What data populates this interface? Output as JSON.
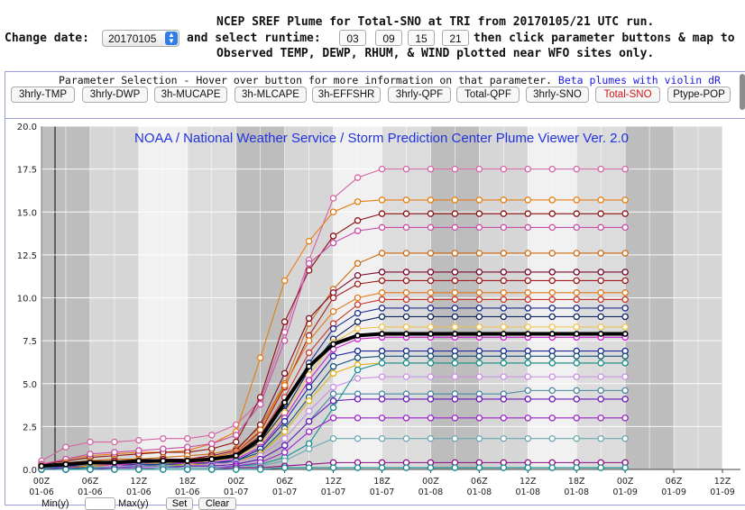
{
  "header": {
    "line1": "NCEP SREF Plume for Total-SNO at TRI from 20170105/21 UTC run.",
    "change_date_label": "Change date:",
    "date_value": "20170105",
    "select_runtime_label": "and select runtime:",
    "runtimes": [
      "03",
      "09",
      "15",
      "21"
    ],
    "after_runtime": "then click parameter buttons & map to",
    "line3": "Observed TEMP, DEWP, RHUM, & WIND plotted near WFO sites only."
  },
  "params": {
    "title": "Parameter Selection - Hover over button for more information on that parameter.",
    "beta_link": "Beta plumes with violin dR",
    "buttons": [
      "3hrly-TMP",
      "3hrly-DWP",
      "3h-MUCAPE",
      "3h-MLCAPE",
      "3h-EFFSHR",
      "3hrly-QPF",
      "Total-QPF",
      "3hrly-SNO",
      "Total-SNO",
      "Ptype-POP"
    ],
    "active": "Total-SNO"
  },
  "footer": {
    "min_label": "Min(y)",
    "max_label": "Max(y)",
    "set_label": "Set",
    "clear_label": "Clear"
  },
  "chart_data": {
    "type": "line",
    "title": "NOAA / National Weather Service / Storm Prediction Center Plume Viewer Ver. 2.0",
    "ylim": [
      0,
      20
    ],
    "y_ticks": [
      "0.0",
      "2.5",
      "5.0",
      "7.5",
      "10.0",
      "12.5",
      "15.0",
      "17.5",
      "20.0"
    ],
    "x_hours": [
      0,
      3,
      6,
      9,
      12,
      15,
      18,
      21,
      24,
      27,
      30,
      33,
      36,
      39,
      42,
      45,
      48,
      51,
      54,
      57,
      60,
      63,
      66,
      69,
      72
    ],
    "x_tick_labels": [
      {
        "hour": 0,
        "time": "00Z",
        "date": "01-06"
      },
      {
        "hour": 6,
        "time": "06Z",
        "date": "01-06"
      },
      {
        "hour": 12,
        "time": "12Z",
        "date": "01-06"
      },
      {
        "hour": 18,
        "time": "18Z",
        "date": "01-06"
      },
      {
        "hour": 24,
        "time": "00Z",
        "date": "01-07"
      },
      {
        "hour": 30,
        "time": "06Z",
        "date": "01-07"
      },
      {
        "hour": 36,
        "time": "12Z",
        "date": "01-07"
      },
      {
        "hour": 42,
        "time": "18Z",
        "date": "01-07"
      },
      {
        "hour": 48,
        "time": "00Z",
        "date": "01-08"
      },
      {
        "hour": 54,
        "time": "06Z",
        "date": "01-08"
      },
      {
        "hour": 60,
        "time": "12Z",
        "date": "01-08"
      },
      {
        "hour": 66,
        "time": "18Z",
        "date": "01-08"
      },
      {
        "hour": 72,
        "time": "00Z",
        "date": "01-09"
      },
      {
        "hour": 78,
        "time": "06Z",
        "date": "01-09"
      },
      {
        "hour": 84,
        "time": "12Z",
        "date": "01-09"
      }
    ],
    "grid": true,
    "series": [
      {
        "color": "#d462a5",
        "values": [
          0.5,
          1.3,
          1.6,
          1.6,
          1.7,
          1.8,
          1.8,
          2.0,
          2.6,
          4.0,
          8.0,
          12.2,
          15.8,
          17.0,
          17.5,
          17.5,
          17.5,
          17.5,
          17.5,
          17.5,
          17.5,
          17.5,
          17.5,
          17.5,
          17.5
        ]
      },
      {
        "color": "#e87d12",
        "values": [
          0.3,
          0.6,
          0.8,
          0.9,
          1.0,
          1.0,
          1.1,
          1.5,
          2.2,
          6.5,
          11.0,
          13.3,
          15.0,
          15.6,
          15.7,
          15.7,
          15.7,
          15.7,
          15.7,
          15.7,
          15.7,
          15.7,
          15.7,
          15.7,
          15.7
        ]
      },
      {
        "color": "#8a1010",
        "values": [
          0.3,
          0.5,
          0.7,
          0.8,
          0.9,
          1.0,
          1.0,
          1.2,
          1.6,
          4.2,
          8.6,
          11.6,
          13.6,
          14.5,
          14.9,
          14.9,
          14.9,
          14.9,
          14.9,
          14.9,
          14.9,
          14.9,
          14.9,
          14.9,
          14.9
        ]
      },
      {
        "color": "#c74fa8",
        "values": [
          0.3,
          0.6,
          0.9,
          1.0,
          1.1,
          1.2,
          1.3,
          1.5,
          2.0,
          3.8,
          7.5,
          12.0,
          13.2,
          13.9,
          14.1,
          14.1,
          14.1,
          14.1,
          14.1,
          14.1,
          14.1,
          14.1,
          14.1,
          14.1,
          14.1
        ]
      },
      {
        "color": "#cf6a10",
        "values": [
          0.2,
          0.4,
          0.5,
          0.6,
          0.6,
          0.7,
          0.8,
          0.9,
          1.2,
          2.5,
          5.0,
          8.5,
          10.5,
          12.0,
          12.6,
          12.6,
          12.6,
          12.6,
          12.6,
          12.6,
          12.6,
          12.6,
          12.6,
          12.6,
          12.6
        ]
      },
      {
        "color": "#7a0c2a",
        "values": [
          0.2,
          0.3,
          0.4,
          0.5,
          0.5,
          0.6,
          0.6,
          0.8,
          1.1,
          2.6,
          5.6,
          8.8,
          10.3,
          11.3,
          11.5,
          11.5,
          11.5,
          11.5,
          11.5,
          11.5,
          11.5,
          11.5,
          11.5,
          11.5,
          11.5
        ]
      },
      {
        "color": "#a01c1c",
        "values": [
          0.2,
          0.3,
          0.4,
          0.4,
          0.5,
          0.5,
          0.6,
          0.7,
          1.0,
          2.2,
          4.8,
          7.8,
          10.0,
          10.8,
          11.0,
          11.0,
          11.0,
          11.0,
          11.0,
          11.0,
          11.0,
          11.0,
          11.0,
          11.0,
          11.0
        ]
      },
      {
        "color": "#e07a18",
        "values": [
          0.2,
          0.3,
          0.4,
          0.4,
          0.5,
          0.5,
          0.6,
          0.7,
          1.0,
          2.3,
          4.9,
          7.5,
          9.2,
          10.0,
          10.3,
          10.3,
          10.3,
          10.3,
          10.3,
          10.3,
          10.3,
          10.3,
          10.3,
          10.3,
          10.3
        ]
      },
      {
        "color": "#c8362b",
        "values": [
          0.2,
          0.3,
          0.3,
          0.4,
          0.4,
          0.5,
          0.5,
          0.6,
          0.9,
          2.0,
          4.2,
          6.8,
          8.5,
          9.6,
          9.9,
          9.9,
          9.9,
          9.9,
          9.9,
          9.9,
          9.9,
          9.9,
          9.9,
          9.9,
          9.9
        ]
      },
      {
        "color": "#1f2f8f",
        "values": [
          0.1,
          0.2,
          0.3,
          0.3,
          0.4,
          0.4,
          0.5,
          0.6,
          0.8,
          1.8,
          3.8,
          6.2,
          8.2,
          9.1,
          9.4,
          9.4,
          9.4,
          9.4,
          9.4,
          9.4,
          9.4,
          9.4,
          9.4,
          9.4,
          9.4
        ]
      },
      {
        "color": "#102860",
        "values": [
          0.1,
          0.2,
          0.3,
          0.3,
          0.3,
          0.4,
          0.4,
          0.5,
          0.7,
          1.6,
          3.4,
          5.8,
          7.6,
          8.6,
          8.9,
          8.9,
          8.9,
          8.9,
          8.9,
          8.9,
          8.9,
          8.9,
          8.9,
          8.9,
          8.9
        ]
      },
      {
        "color": "#f2c14a",
        "values": [
          0.1,
          0.2,
          0.3,
          0.3,
          0.3,
          0.4,
          0.4,
          0.5,
          0.7,
          1.5,
          3.3,
          5.5,
          7.4,
          8.2,
          8.3,
          8.3,
          8.3,
          8.3,
          8.3,
          8.3,
          8.3,
          8.3,
          8.3,
          8.3,
          8.3
        ]
      },
      {
        "color": "#000000",
        "values": [
          0.2,
          0.3,
          0.4,
          0.4,
          0.5,
          0.5,
          0.5,
          0.6,
          0.8,
          1.8,
          3.9,
          6.0,
          7.3,
          7.8,
          7.9,
          7.9,
          7.9,
          7.9,
          7.9,
          7.9,
          7.9,
          7.9,
          7.9,
          7.9,
          7.9
        ],
        "mean": true
      },
      {
        "color": "#cc22cc",
        "values": [
          0.1,
          0.2,
          0.2,
          0.3,
          0.3,
          0.3,
          0.4,
          0.4,
          0.6,
          1.3,
          3.0,
          5.2,
          7.0,
          7.6,
          7.7,
          7.7,
          7.7,
          7.7,
          7.7,
          7.7,
          7.7,
          7.7,
          7.7,
          7.7,
          7.7
        ]
      },
      {
        "color": "#1b2a99",
        "values": [
          0.1,
          0.2,
          0.2,
          0.2,
          0.3,
          0.3,
          0.3,
          0.4,
          0.5,
          1.2,
          2.8,
          4.8,
          6.6,
          6.9,
          6.9,
          6.9,
          6.9,
          6.9,
          6.9,
          6.9,
          6.9,
          6.9,
          6.9,
          6.9,
          6.9
        ]
      },
      {
        "color": "#14507a",
        "values": [
          0.1,
          0.1,
          0.2,
          0.2,
          0.2,
          0.3,
          0.3,
          0.3,
          0.5,
          1.0,
          2.4,
          4.2,
          6.0,
          6.5,
          6.6,
          6.6,
          6.6,
          6.6,
          6.6,
          6.6,
          6.6,
          6.6,
          6.6,
          6.6,
          6.6
        ]
      },
      {
        "color": "#e0b016",
        "values": [
          0.1,
          0.1,
          0.2,
          0.2,
          0.2,
          0.2,
          0.3,
          0.3,
          0.4,
          0.9,
          2.2,
          4.0,
          5.6,
          6.1,
          6.2,
          6.2,
          6.2,
          6.2,
          6.2,
          6.2,
          6.2,
          6.2,
          6.2,
          6.2,
          6.2
        ]
      },
      {
        "color": "#c98de3",
        "values": [
          0.1,
          0.1,
          0.1,
          0.2,
          0.2,
          0.2,
          0.2,
          0.3,
          0.4,
          0.8,
          1.8,
          3.4,
          4.8,
          5.3,
          5.4,
          5.4,
          5.4,
          5.4,
          5.4,
          5.4,
          5.4,
          5.4,
          5.4,
          5.4,
          5.4
        ]
      },
      {
        "color": "#4a88a0",
        "values": [
          0.1,
          0.1,
          0.1,
          0.1,
          0.2,
          0.2,
          0.2,
          0.2,
          0.3,
          0.6,
          1.4,
          2.8,
          4.4,
          4.4,
          4.4,
          4.4,
          4.4,
          4.4,
          4.4,
          4.4,
          4.6,
          4.6,
          4.6,
          4.6,
          4.6
        ]
      },
      {
        "color": "#6a1ab8",
        "values": [
          0.0,
          0.1,
          0.1,
          0.1,
          0.1,
          0.1,
          0.2,
          0.2,
          0.3,
          0.6,
          1.4,
          2.8,
          4.0,
          4.1,
          4.1,
          4.1,
          4.1,
          4.1,
          4.1,
          4.1,
          4.1,
          4.1,
          4.1,
          4.1,
          4.1
        ]
      },
      {
        "color": "#139090",
        "values": [
          0.0,
          0.0,
          0.1,
          0.1,
          0.1,
          0.1,
          0.1,
          0.1,
          0.2,
          0.3,
          0.7,
          1.5,
          3.6,
          5.8,
          6.2,
          6.2,
          6.2,
          6.2,
          6.2,
          6.2,
          6.2,
          6.2,
          6.2,
          6.2,
          6.2
        ]
      },
      {
        "color": "#9b22cc",
        "values": [
          0.0,
          0.0,
          0.0,
          0.1,
          0.1,
          0.1,
          0.1,
          0.1,
          0.2,
          0.4,
          1.0,
          2.2,
          3.0,
          3.0,
          3.0,
          3.0,
          3.0,
          3.0,
          3.0,
          3.0,
          3.0,
          3.0,
          3.0,
          3.0,
          3.0
        ]
      },
      {
        "color": "#6aaab2",
        "values": [
          0.0,
          0.0,
          0.0,
          0.0,
          0.0,
          0.1,
          0.1,
          0.1,
          0.1,
          0.2,
          0.5,
          1.2,
          1.8,
          1.8,
          1.8,
          1.8,
          1.8,
          1.8,
          1.8,
          1.8,
          1.8,
          1.8,
          1.8,
          1.8,
          1.8
        ]
      },
      {
        "color": "#8a0c8a",
        "values": [
          0.0,
          0.0,
          0.0,
          0.0,
          0.0,
          0.0,
          0.0,
          0.0,
          0.1,
          0.1,
          0.2,
          0.3,
          0.4,
          0.4,
          0.4,
          0.4,
          0.4,
          0.4,
          0.4,
          0.4,
          0.4,
          0.4,
          0.4,
          0.4,
          0.4
        ]
      },
      {
        "color": "#108a8a",
        "values": [
          0.0,
          0.0,
          0.0,
          0.0,
          0.0,
          0.0,
          0.0,
          0.0,
          0.0,
          0.0,
          0.1,
          0.1,
          0.1,
          0.1,
          0.1,
          0.1,
          0.1,
          0.1,
          0.1,
          0.1,
          0.1,
          0.1,
          0.1,
          0.1,
          0.1
        ]
      }
    ]
  }
}
